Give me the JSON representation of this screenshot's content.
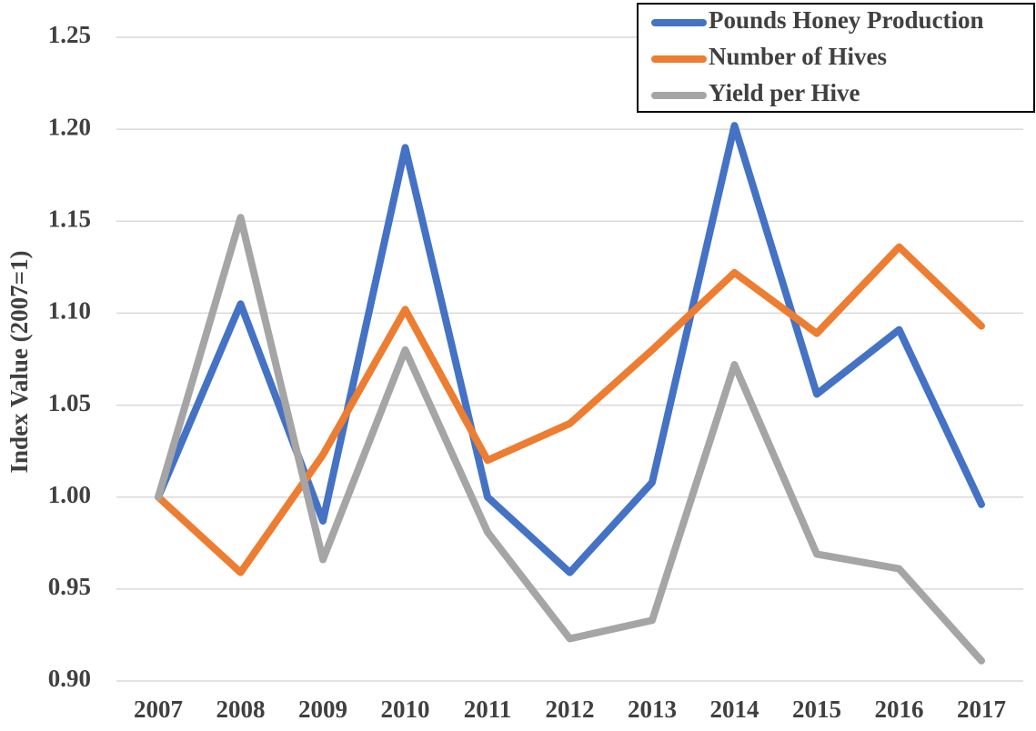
{
  "chart_data": {
    "type": "line",
    "y_label": "Index Value (2007=1)",
    "categories": [
      "2007",
      "2008",
      "2009",
      "2010",
      "2011",
      "2012",
      "2013",
      "2014",
      "2015",
      "2016",
      "2017"
    ],
    "series": [
      {
        "name": "Pounds Honey Production",
        "color": "#4472c4",
        "values": [
          1.0,
          1.105,
          0.987,
          1.19,
          1.0,
          0.959,
          1.008,
          1.202,
          1.056,
          1.091,
          0.996
        ]
      },
      {
        "name": "Number of Hives",
        "color": "#ed7d31",
        "values": [
          1.0,
          0.959,
          1.023,
          1.102,
          1.02,
          1.04,
          1.08,
          1.122,
          1.089,
          1.136,
          1.093
        ]
      },
      {
        "name": "Yield per Hive",
        "color": "#a5a5a5",
        "values": [
          1.0,
          1.152,
          0.966,
          1.08,
          0.981,
          0.923,
          0.933,
          1.072,
          0.969,
          0.961,
          0.911
        ]
      }
    ],
    "ylim": [
      0.9,
      1.25
    ],
    "yticks": [
      {
        "value": 0.9,
        "label": "0.90"
      },
      0.95,
      {
        "value": 1.0,
        "label": "1.00"
      },
      1.05,
      {
        "value": 1.1,
        "label": "1.10"
      },
      1.15,
      {
        "value": 1.2,
        "label": "1.20"
      },
      1.25
    ],
    "grid": true,
    "legend": "upper right"
  }
}
